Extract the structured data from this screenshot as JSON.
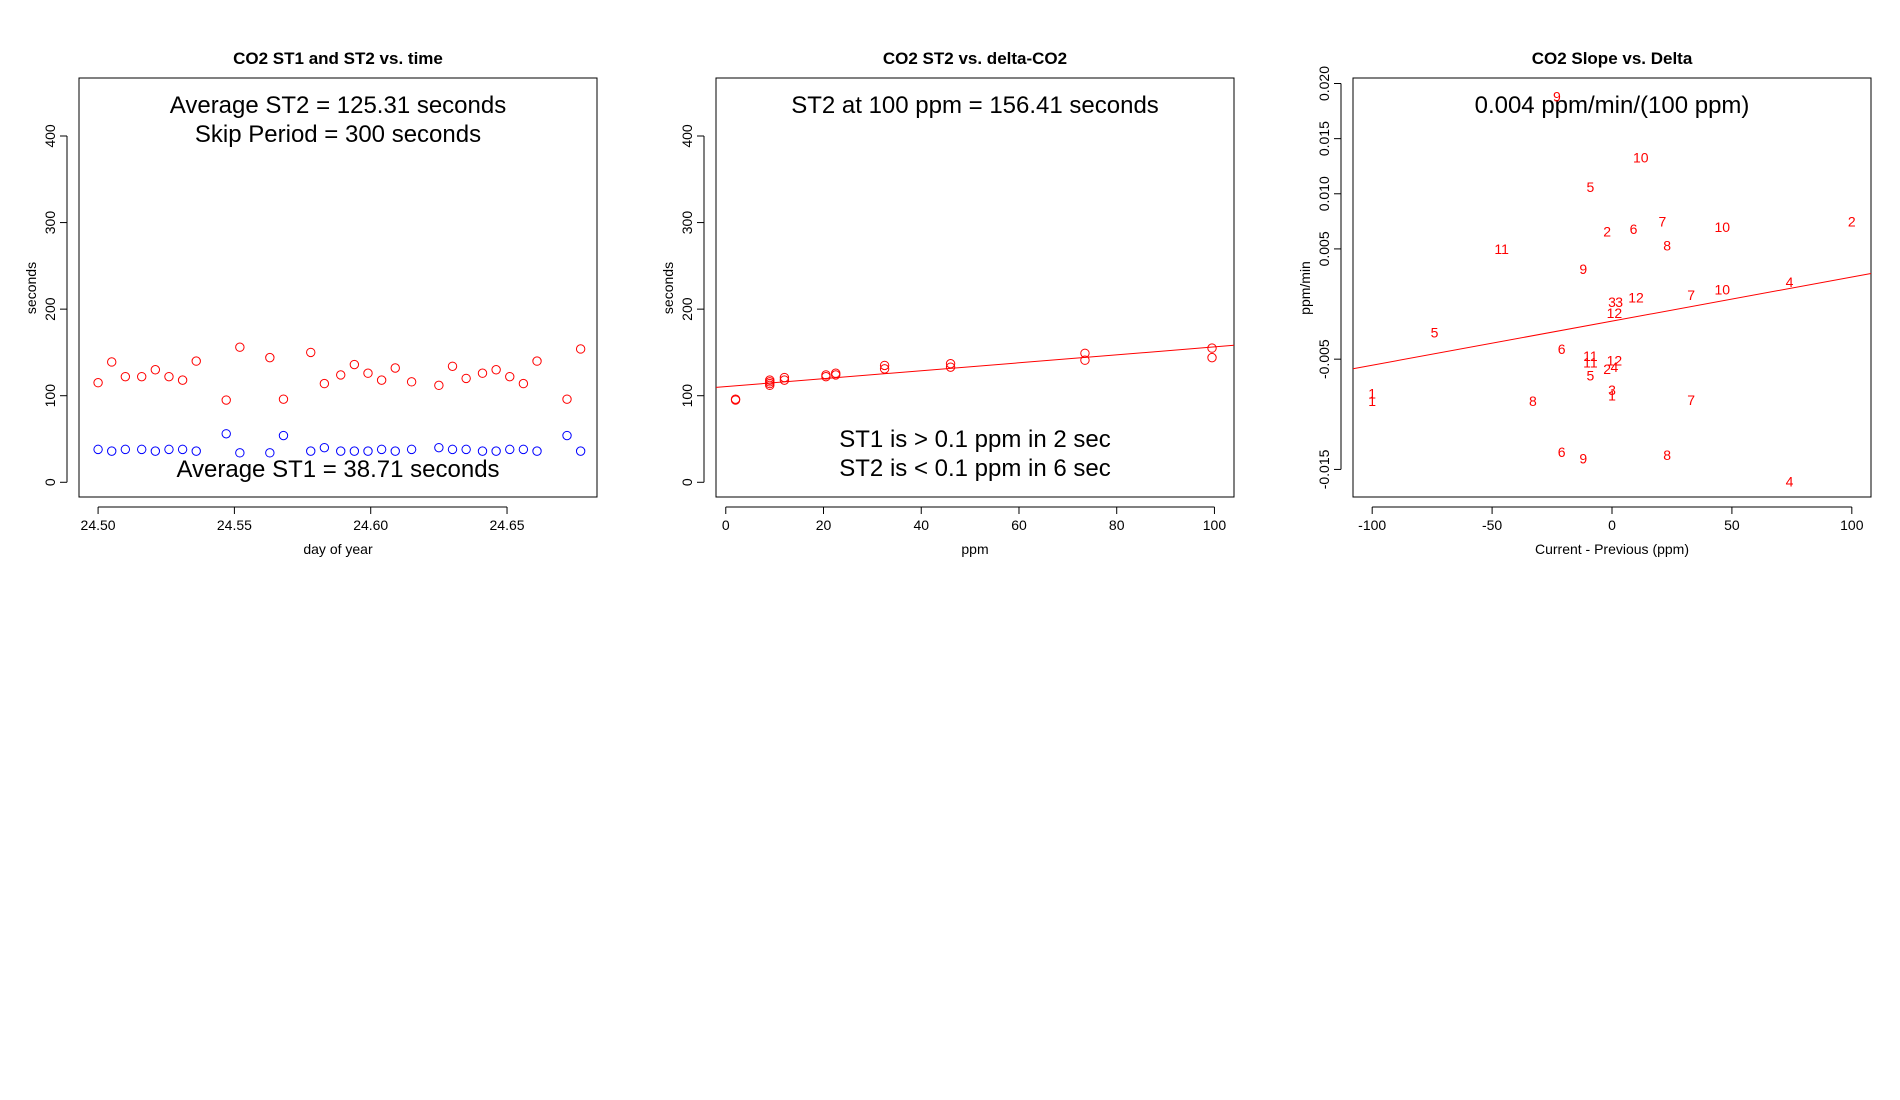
{
  "colors": {
    "st2": "#ff0000",
    "st1": "#0000ff",
    "axis": "#000000",
    "fit": "#ff0000"
  },
  "chart_data": [
    {
      "type": "scatter",
      "title": "CO2 ST1 and ST2 vs. time",
      "xlabel": "day of year",
      "ylabel": "seconds",
      "xlim": [
        24.493,
        24.683
      ],
      "ylim": [
        -17,
        467
      ],
      "xticks": [
        24.5,
        24.55,
        24.6,
        24.65
      ],
      "xtick_labels": [
        "24.50",
        "24.55",
        "24.60",
        "24.65"
      ],
      "yticks": [
        0,
        100,
        200,
        300,
        400
      ],
      "ytick_labels": [
        "0",
        "100",
        "200",
        "300",
        "400"
      ],
      "annotations": [
        "Average ST2 =  125.31  seconds",
        "Skip Period =  300  seconds",
        "Average ST1 =  38.71  seconds"
      ],
      "series": [
        {
          "color": "#ff0000",
          "x": [
            24.5,
            24.505,
            24.51,
            24.516,
            24.521,
            24.526,
            24.531,
            24.536,
            24.547,
            24.552,
            24.563,
            24.568,
            24.578,
            24.583,
            24.589,
            24.594,
            24.599,
            24.604,
            24.609,
            24.615,
            24.625,
            24.63,
            24.635,
            24.641,
            24.646,
            24.651,
            24.656,
            24.661,
            24.672,
            24.677
          ],
          "y": [
            115,
            139,
            122,
            122,
            130,
            122,
            118,
            140,
            95,
            156,
            144,
            96,
            150,
            114,
            124,
            136,
            126,
            118,
            132,
            116,
            112,
            134,
            120,
            126,
            130,
            122,
            114,
            140,
            96,
            154
          ]
        },
        {
          "color": "#0000ff",
          "x": [
            24.5,
            24.505,
            24.51,
            24.516,
            24.521,
            24.526,
            24.531,
            24.536,
            24.547,
            24.552,
            24.563,
            24.568,
            24.578,
            24.583,
            24.589,
            24.594,
            24.599,
            24.604,
            24.609,
            24.615,
            24.625,
            24.63,
            24.635,
            24.641,
            24.646,
            24.651,
            24.656,
            24.661,
            24.672,
            24.677
          ],
          "y": [
            38,
            36,
            38,
            38,
            36,
            38,
            38,
            36,
            56,
            34,
            34,
            54,
            36,
            40,
            36,
            36,
            36,
            38,
            36,
            38,
            40,
            38,
            38,
            36,
            36,
            38,
            38,
            36,
            54,
            36
          ]
        }
      ]
    },
    {
      "type": "scatter",
      "title": "CO2 ST2 vs. delta-CO2",
      "xlabel": "ppm",
      "ylabel": "seconds",
      "xlim": [
        -2,
        104
      ],
      "ylim": [
        -17,
        467
      ],
      "xticks": [
        0,
        20,
        40,
        60,
        80,
        100
      ],
      "xtick_labels": [
        "0",
        "20",
        "40",
        "60",
        "80",
        "100"
      ],
      "yticks": [
        0,
        100,
        200,
        300,
        400
      ],
      "ytick_labels": [
        "0",
        "100",
        "200",
        "300",
        "400"
      ],
      "annotations": [
        "ST2 at 100 ppm =  156.41  seconds",
        "ST1 is > 0.1 ppm in 2 sec",
        "ST2 is < 0.1 ppm in 6 sec"
      ],
      "series": [
        {
          "color": "#ff0000",
          "x": [
            2,
            2,
            9,
            9,
            9,
            9,
            12,
            12,
            20.5,
            20.5,
            22.5,
            22.5,
            32.5,
            32.5,
            46,
            46,
            73.5,
            73.5,
            99.5,
            99.5
          ],
          "y": [
            95,
            96,
            112,
            114,
            116,
            118,
            118,
            121,
            122,
            124,
            124,
            126,
            131,
            135,
            133,
            137,
            141,
            149,
            144,
            155
          ]
        }
      ],
      "fit_line": {
        "intercept": 110.5,
        "slope": 0.459
      }
    },
    {
      "type": "scatter",
      "title": "CO2 Slope vs. Delta",
      "xlabel": "Current - Previous (ppm)",
      "ylabel": "ppm/min",
      "xlim": [
        -108,
        108
      ],
      "ylim": [
        -0.0175,
        0.0205
      ],
      "xticks": [
        -100,
        -50,
        0,
        50,
        100
      ],
      "xtick_labels": [
        "-100",
        "-50",
        "0",
        "50",
        "100"
      ],
      "yticks": [
        -0.015,
        -0.005,
        0.005,
        0.01,
        0.015,
        0.02
      ],
      "ytick_labels": [
        "-0.015",
        "-0.005",
        "0.005",
        "0.010",
        "0.015",
        "0.020"
      ],
      "annotations": [
        "0.004  ppm/min/(100 ppm)"
      ],
      "points": [
        {
          "x": -23,
          "y": 0.0188,
          "label": "9"
        },
        {
          "x": 12,
          "y": 0.0133,
          "label": "10"
        },
        {
          "x": -9,
          "y": 0.0106,
          "label": "5"
        },
        {
          "x": 21,
          "y": 0.0075,
          "label": "7"
        },
        {
          "x": 100,
          "y": 0.0075,
          "label": "2"
        },
        {
          "x": 46,
          "y": 0.007,
          "label": "10"
        },
        {
          "x": 9,
          "y": 0.0068,
          "label": "6"
        },
        {
          "x": -2,
          "y": 0.0066,
          "label": "2"
        },
        {
          "x": 23,
          "y": 0.0053,
          "label": "8"
        },
        {
          "x": -46,
          "y": 0.005,
          "label": "11"
        },
        {
          "x": -12,
          "y": 0.0032,
          "label": "9"
        },
        {
          "x": 74,
          "y": 0.002,
          "label": "4"
        },
        {
          "x": 46,
          "y": 0.0013,
          "label": "10"
        },
        {
          "x": 33,
          "y": 0.0008,
          "label": "7"
        },
        {
          "x": 10,
          "y": 0.0006,
          "label": "12"
        },
        {
          "x": 0,
          "y": 0.0002,
          "label": "3"
        },
        {
          "x": 3,
          "y": 0.0002,
          "label": "3"
        },
        {
          "x": 1,
          "y": -0.0008,
          "label": "12"
        },
        {
          "x": -74,
          "y": -0.0026,
          "label": "5"
        },
        {
          "x": -21,
          "y": -0.0041,
          "label": "6"
        },
        {
          "x": -9,
          "y": -0.0047,
          "label": "11"
        },
        {
          "x": -9,
          "y": -0.0053,
          "label": "11"
        },
        {
          "x": 1,
          "y": -0.0051,
          "label": "12"
        },
        {
          "x": 1,
          "y": -0.0057,
          "label": "4"
        },
        {
          "x": -2,
          "y": -0.0059,
          "label": "2"
        },
        {
          "x": -9,
          "y": -0.0065,
          "label": "5"
        },
        {
          "x": 0,
          "y": -0.0078,
          "label": "3"
        },
        {
          "x": 0,
          "y": -0.0083,
          "label": "1"
        },
        {
          "x": -100,
          "y": -0.0081,
          "label": "1"
        },
        {
          "x": -100,
          "y": -0.0088,
          "label": "1"
        },
        {
          "x": -33,
          "y": -0.0088,
          "label": "8"
        },
        {
          "x": 33,
          "y": -0.0087,
          "label": "7"
        },
        {
          "x": -21,
          "y": -0.0134,
          "label": "6"
        },
        {
          "x": -12,
          "y": -0.014,
          "label": "9"
        },
        {
          "x": 23,
          "y": -0.0137,
          "label": "8"
        },
        {
          "x": 74,
          "y": -0.0161,
          "label": "4"
        }
      ],
      "fit_line": {
        "intercept": -0.00155,
        "slope": 4e-05
      }
    }
  ]
}
